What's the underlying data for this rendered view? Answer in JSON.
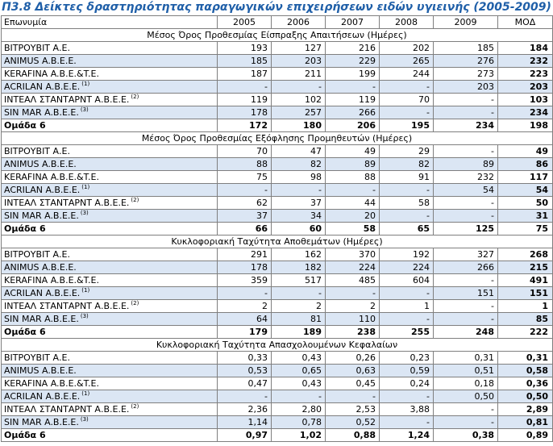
{
  "title": "Π3.8 Δείκτες δραστηριότητας παραγωγικών επιχειρήσεων ειδών υγιεινής (2005-2009)",
  "header": {
    "name": "Επωνυμία",
    "years": [
      "2005",
      "2006",
      "2007",
      "2008",
      "2009"
    ],
    "mod": "ΜΟΔ"
  },
  "sections": [
    {
      "title": "Μέσος Όρος Προθεσμίας Είσπραξης Απαιτήσεων (Ημέρες)",
      "rows": [
        {
          "name": "ΒΙΤΡΟΥΒΙΤ Α.Ε.",
          "sup": "",
          "values": [
            "193",
            "127",
            "216",
            "202",
            "185"
          ],
          "mod": "184"
        },
        {
          "name": "ANIMUS A.B.E.E.",
          "sup": "",
          "values": [
            "185",
            "203",
            "229",
            "265",
            "276"
          ],
          "mod": "232"
        },
        {
          "name": "KERAFINA A.B.E.&T.E.",
          "sup": "",
          "values": [
            "187",
            "211",
            "199",
            "244",
            "273"
          ],
          "mod": "223"
        },
        {
          "name": "ACRILAN A.B.E.E.",
          "sup": "(1)",
          "values": [
            "-",
            "-",
            "-",
            "-",
            "203"
          ],
          "mod": "203"
        },
        {
          "name": "ΙΝΤΕΑΛ ΣΤΑΝΤΑΡΝΤ Α.Β.Ε.Ε.",
          "sup": "(2)",
          "values": [
            "119",
            "102",
            "119",
            "70",
            "-"
          ],
          "mod": "103"
        },
        {
          "name": "SIN MAR A.B.E.E.",
          "sup": "(3)",
          "values": [
            "178",
            "257",
            "266",
            "-",
            "-"
          ],
          "mod": "234"
        },
        {
          "name": "Ομάδα 6",
          "sup": "",
          "values": [
            "172",
            "180",
            "206",
            "195",
            "234"
          ],
          "mod": "198"
        }
      ]
    },
    {
      "title": "Μέσος Όρος Προθεσμίας Εξόφλησης Προμηθευτών (Ημέρες)",
      "rows": [
        {
          "name": "ΒΙΤΡΟΥΒΙΤ Α.Ε.",
          "sup": "",
          "values": [
            "70",
            "47",
            "49",
            "29",
            "-"
          ],
          "mod": "49"
        },
        {
          "name": "ANIMUS A.B.E.E.",
          "sup": "",
          "values": [
            "88",
            "82",
            "89",
            "82",
            "89"
          ],
          "mod": "86"
        },
        {
          "name": "KERAFINA A.B.E.&T.E.",
          "sup": "",
          "values": [
            "75",
            "98",
            "88",
            "91",
            "232"
          ],
          "mod": "117"
        },
        {
          "name": "ACRILAN A.B.E.E.",
          "sup": "(1)",
          "values": [
            "-",
            "-",
            "-",
            "-",
            "54"
          ],
          "mod": "54"
        },
        {
          "name": "ΙΝΤΕΑΛ ΣΤΑΝΤΑΡΝΤ Α.Β.Ε.Ε.",
          "sup": "(2)",
          "values": [
            "62",
            "37",
            "44",
            "58",
            "-"
          ],
          "mod": "50"
        },
        {
          "name": "SIN MAR A.B.E.E.",
          "sup": "(3)",
          "values": [
            "37",
            "34",
            "20",
            "-",
            "-"
          ],
          "mod": "31"
        },
        {
          "name": "Ομάδα 6",
          "sup": "",
          "values": [
            "66",
            "60",
            "58",
            "65",
            "125"
          ],
          "mod": "75"
        }
      ]
    },
    {
      "title": "Κυκλοφοριακή Ταχύτητα Αποθεμάτων (Ημέρες)",
      "rows": [
        {
          "name": "ΒΙΤΡΟΥΒΙΤ Α.Ε.",
          "sup": "",
          "values": [
            "291",
            "162",
            "370",
            "192",
            "327"
          ],
          "mod": "268"
        },
        {
          "name": "ANIMUS A.B.E.E.",
          "sup": "",
          "values": [
            "178",
            "182",
            "224",
            "224",
            "266"
          ],
          "mod": "215"
        },
        {
          "name": "KERAFINA A.B.E.&T.E.",
          "sup": "",
          "values": [
            "359",
            "517",
            "485",
            "604",
            "-"
          ],
          "mod": "491"
        },
        {
          "name": "ACRILAN A.B.E.E.",
          "sup": "(1)",
          "values": [
            "-",
            "-",
            "-",
            "-",
            "151"
          ],
          "mod": "151"
        },
        {
          "name": "ΙΝΤΕΑΛ ΣΤΑΝΤΑΡΝΤ Α.Β.Ε.Ε.",
          "sup": "(2)",
          "values": [
            "2",
            "2",
            "2",
            "1",
            "-"
          ],
          "mod": "1"
        },
        {
          "name": "SIN MAR A.B.E.E.",
          "sup": "(3)",
          "values": [
            "64",
            "81",
            "110",
            "-",
            "-"
          ],
          "mod": "85"
        },
        {
          "name": "Ομάδα 6",
          "sup": "",
          "values": [
            "179",
            "189",
            "238",
            "255",
            "248"
          ],
          "mod": "222"
        }
      ]
    },
    {
      "title": "Κυκλοφοριακή Ταχύτητα Απασχολουμένων Κεφαλαίων",
      "rows": [
        {
          "name": "ΒΙΤΡΟΥΒΙΤ Α.Ε.",
          "sup": "",
          "values": [
            "0,33",
            "0,43",
            "0,26",
            "0,23",
            "0,31"
          ],
          "mod": "0,31"
        },
        {
          "name": "ANIMUS A.B.E.E.",
          "sup": "",
          "values": [
            "0,53",
            "0,65",
            "0,63",
            "0,59",
            "0,51"
          ],
          "mod": "0,58"
        },
        {
          "name": "KERAFINA A.B.E.&T.E.",
          "sup": "",
          "values": [
            "0,47",
            "0,43",
            "0,45",
            "0,24",
            "0,18"
          ],
          "mod": "0,36"
        },
        {
          "name": "ACRILAN A.B.E.E.",
          "sup": "(1)",
          "values": [
            "-",
            "-",
            "-",
            "-",
            "0,50"
          ],
          "mod": "0,50"
        },
        {
          "name": "ΙΝΤΕΑΛ ΣΤΑΝΤΑΡΝΤ Α.Β.Ε.Ε.",
          "sup": "(2)",
          "values": [
            "2,36",
            "2,80",
            "2,53",
            "3,88",
            "-"
          ],
          "mod": "2,89"
        },
        {
          "name": "SIN MAR A.B.E.E.",
          "sup": "(3)",
          "values": [
            "1,14",
            "0,78",
            "0,52",
            "-",
            "-"
          ],
          "mod": "0,81"
        },
        {
          "name": "Ομάδα 6",
          "sup": "",
          "values": [
            "0,97",
            "1,02",
            "0,88",
            "1,24",
            "0,38"
          ],
          "mod": "0,89"
        }
      ]
    }
  ],
  "colors": {
    "title": "#1f5fa8",
    "row_shade": "#dbe6f4",
    "border": "#7f7f7f"
  }
}
